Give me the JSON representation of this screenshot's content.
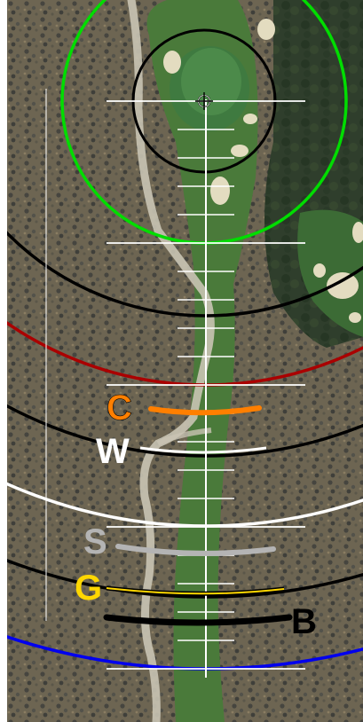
{
  "hole_view": {
    "pin_marker": "crosshair-icon",
    "tees": [
      {
        "key": "C",
        "label": "C",
        "color": "#ff7f00"
      },
      {
        "key": "W",
        "label": "W",
        "color": "#ffffff"
      },
      {
        "key": "S",
        "label": "S",
        "color": "#b4b4b4"
      },
      {
        "key": "G",
        "label": "G",
        "color": "#ffd700"
      },
      {
        "key": "B",
        "label": "B",
        "color": "#000000"
      }
    ],
    "distance_rings": [
      {
        "color": "#000000"
      },
      {
        "color": "#00dd00"
      },
      {
        "color": "#000000"
      },
      {
        "color": "#aa0000"
      },
      {
        "color": "#000000"
      },
      {
        "color": "#ffffff"
      },
      {
        "color": "#000000"
      },
      {
        "color": "#0000ee"
      }
    ],
    "colors": {
      "rough": "#6d6552",
      "scrub": "#4a4a45",
      "fairway": "#4a7a3a",
      "green": "#3f7a40",
      "bunker": "#e3dcc0",
      "cart_path": "#c9c4b4",
      "guide_lines": "#ffffff"
    }
  }
}
